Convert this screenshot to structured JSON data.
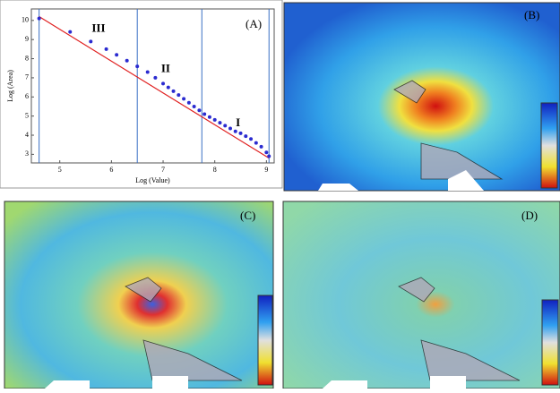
{
  "chart_data": {
    "type": "scatter",
    "xlabel": "Log (Value)",
    "ylabel": "Log (Area)",
    "panel_label": "(A)",
    "xlim": [
      4.45,
      9.15
    ],
    "ylim": [
      2.55,
      10.6
    ],
    "xticks": [
      5,
      6,
      7,
      8,
      9
    ],
    "yticks": [
      3,
      4,
      5,
      6,
      7,
      8,
      9,
      10
    ],
    "vlines": [
      4.6,
      6.5,
      7.75,
      9.05
    ],
    "vline_color": "#3a6fc4",
    "series": [
      {
        "type": "scatter",
        "color": "#2b2bd0",
        "x": [
          4.6,
          5.2,
          5.6,
          5.9,
          6.1,
          6.3,
          6.5,
          6.7,
          6.85,
          7.0,
          7.1,
          7.2,
          7.3,
          7.4,
          7.5,
          7.6,
          7.7,
          7.8,
          7.9,
          8.0,
          8.1,
          8.2,
          8.3,
          8.4,
          8.5,
          8.6,
          8.7,
          8.8,
          8.9,
          9.0,
          9.05
        ],
        "values": [
          10.1,
          9.4,
          8.9,
          8.5,
          8.2,
          7.9,
          7.6,
          7.3,
          7.0,
          6.7,
          6.5,
          6.3,
          6.1,
          5.9,
          5.7,
          5.5,
          5.3,
          5.1,
          4.95,
          4.8,
          4.65,
          4.5,
          4.35,
          4.2,
          4.1,
          3.95,
          3.8,
          3.6,
          3.4,
          3.1,
          2.9
        ]
      },
      {
        "type": "line",
        "color": "#e02020",
        "x": [
          4.6,
          9.05
        ],
        "values": [
          10.2,
          2.8
        ]
      }
    ],
    "annotations": [
      {
        "text": "III",
        "x": 5.75,
        "y": 9.55
      },
      {
        "text": "II",
        "x": 7.05,
        "y": 7.45
      },
      {
        "text": "I",
        "x": 8.45,
        "y": 4.6
      }
    ]
  },
  "panels": [
    {
      "label": "(B)"
    },
    {
      "label": "(C)"
    },
    {
      "label": "(D)"
    }
  ]
}
